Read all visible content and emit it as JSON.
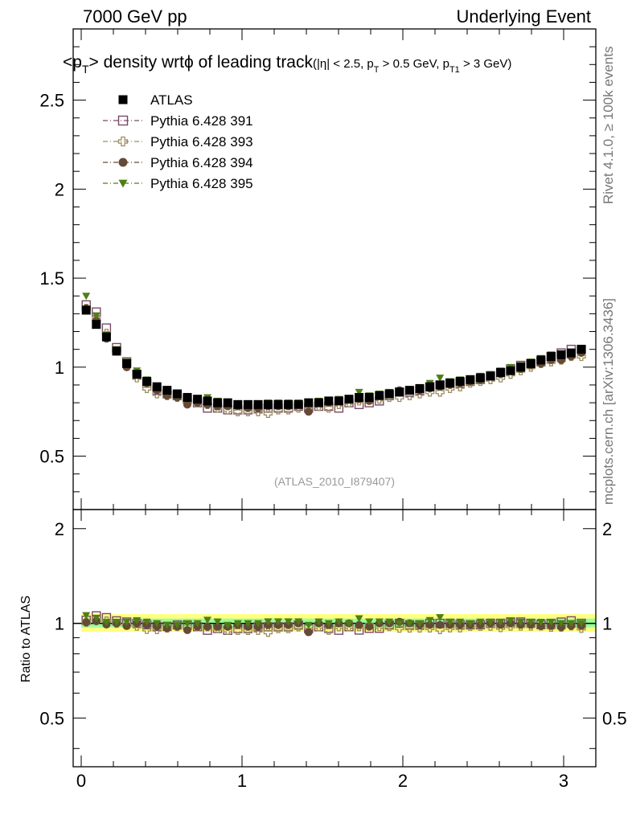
{
  "header": {
    "left_label": "7000 GeV pp",
    "right_label": "Underlying Event"
  },
  "side_labels": {
    "rivet": "Rivet 4.1.0, ≥ 100k events",
    "mcplots": "mcplots.cern.ch [arXiv:1306.3436]"
  },
  "chart_data": {
    "type": "scatter",
    "title_main": "<p",
    "title_sub_T": "T",
    "title_rest": "> density wrtϕ of leading track",
    "title_cuts": "(|η| < 2.5, p",
    "title_cuts_T": "T",
    "title_cuts_2": " > 0.5 GeV, p",
    "title_cuts_T1": "T1",
    "title_cuts_3": " > 3 GeV)",
    "watermark": "(ATLAS_2010_I879407)",
    "ratio_ylabel": "Ratio to ATLAS",
    "xlim": [
      -0.05,
      3.2
    ],
    "ylim": [
      0.2,
      2.9
    ],
    "ratio_ylim": [
      0.35,
      2.3
    ],
    "x_ticks": [
      "0",
      "1",
      "2",
      "3"
    ],
    "y_ticks": [
      "0.5",
      "1",
      "1.5",
      "2",
      "2.5"
    ],
    "ratio_ticks": [
      "0.5",
      "1",
      "2"
    ],
    "legend": [
      "ATLAS",
      "Pythia 6.428 391",
      "Pythia 6.428 393",
      "Pythia 6.428 394",
      "Pythia 6.428 395"
    ],
    "x": [
      0.031,
      0.094,
      0.157,
      0.22,
      0.283,
      0.346,
      0.408,
      0.471,
      0.534,
      0.597,
      0.66,
      0.723,
      0.785,
      0.848,
      0.911,
      0.974,
      1.037,
      1.1,
      1.162,
      1.225,
      1.288,
      1.351,
      1.414,
      1.477,
      1.539,
      1.602,
      1.665,
      1.728,
      1.791,
      1.854,
      1.916,
      1.979,
      2.042,
      2.105,
      2.168,
      2.231,
      2.293,
      2.356,
      2.419,
      2.482,
      2.545,
      2.608,
      2.67,
      2.733,
      2.796,
      2.859,
      2.922,
      2.985,
      3.047,
      3.11
    ],
    "series": [
      {
        "name": "ATLAS",
        "color": "#000000",
        "marker": "square-filled",
        "values": [
          1.32,
          1.24,
          1.17,
          1.09,
          1.02,
          0.96,
          0.92,
          0.89,
          0.87,
          0.85,
          0.83,
          0.82,
          0.81,
          0.8,
          0.8,
          0.79,
          0.79,
          0.79,
          0.79,
          0.79,
          0.79,
          0.79,
          0.8,
          0.8,
          0.81,
          0.81,
          0.82,
          0.83,
          0.83,
          0.84,
          0.85,
          0.86,
          0.87,
          0.88,
          0.89,
          0.9,
          0.91,
          0.92,
          0.93,
          0.94,
          0.95,
          0.97,
          0.98,
          1.0,
          1.02,
          1.04,
          1.06,
          1.07,
          1.08,
          1.1
        ]
      },
      {
        "name": "Pythia 6.428 391",
        "color": "#7a4a66",
        "marker": "square-open",
        "values": [
          1.35,
          1.31,
          1.22,
          1.11,
          1.03,
          0.96,
          0.91,
          0.87,
          0.85,
          0.84,
          0.82,
          0.8,
          0.77,
          0.77,
          0.76,
          0.76,
          0.76,
          0.77,
          0.77,
          0.77,
          0.77,
          0.78,
          0.77,
          0.78,
          0.78,
          0.77,
          0.8,
          0.79,
          0.8,
          0.81,
          0.84,
          0.86,
          0.86,
          0.87,
          0.89,
          0.9,
          0.91,
          0.91,
          0.92,
          0.93,
          0.95,
          0.97,
          0.99,
          1.01,
          1.02,
          1.03,
          1.06,
          1.08,
          1.1,
          1.1
        ]
      },
      {
        "name": "Pythia 6.428 393",
        "color": "#9b8e5e",
        "marker": "cross-open",
        "values": [
          1.33,
          1.27,
          1.19,
          1.09,
          1.01,
          0.94,
          0.88,
          0.85,
          0.84,
          0.83,
          0.81,
          0.8,
          0.79,
          0.77,
          0.76,
          0.75,
          0.75,
          0.75,
          0.74,
          0.76,
          0.76,
          0.77,
          0.78,
          0.78,
          0.77,
          0.79,
          0.8,
          0.81,
          0.82,
          0.82,
          0.83,
          0.83,
          0.84,
          0.85,
          0.86,
          0.86,
          0.88,
          0.89,
          0.91,
          0.92,
          0.93,
          0.94,
          0.96,
          0.98,
          1.0,
          1.02,
          1.03,
          1.04,
          1.06,
          1.06
        ]
      },
      {
        "name": "Pythia 6.428 394",
        "color": "#654a35",
        "marker": "circle-filled",
        "values": [
          1.33,
          1.26,
          1.16,
          1.09,
          1.0,
          0.96,
          0.91,
          0.87,
          0.84,
          0.83,
          0.79,
          0.8,
          0.79,
          0.78,
          0.78,
          0.78,
          0.77,
          0.77,
          0.78,
          0.78,
          0.78,
          0.79,
          0.75,
          0.8,
          0.8,
          0.81,
          0.82,
          0.82,
          0.81,
          0.84,
          0.85,
          0.87,
          0.87,
          0.87,
          0.88,
          0.89,
          0.9,
          0.91,
          0.92,
          0.93,
          0.95,
          0.96,
          0.98,
          0.99,
          1.01,
          1.02,
          1.04,
          1.04,
          1.06,
          1.08
        ]
      },
      {
        "name": "Pythia 6.428 395",
        "color": "#4f7f14",
        "marker": "triangle-down-filled",
        "values": [
          1.4,
          1.29,
          1.18,
          1.1,
          1.03,
          0.98,
          0.93,
          0.89,
          0.86,
          0.84,
          0.83,
          0.82,
          0.83,
          0.81,
          0.79,
          0.79,
          0.79,
          0.79,
          0.8,
          0.8,
          0.8,
          0.8,
          0.79,
          0.81,
          0.81,
          0.82,
          0.82,
          0.86,
          0.84,
          0.85,
          0.86,
          0.86,
          0.87,
          0.88,
          0.91,
          0.94,
          0.92,
          0.93,
          0.93,
          0.95,
          0.96,
          0.98,
          1.0,
          1.01,
          1.03,
          1.05,
          1.07,
          1.07,
          1.08,
          1.1
        ]
      }
    ]
  }
}
